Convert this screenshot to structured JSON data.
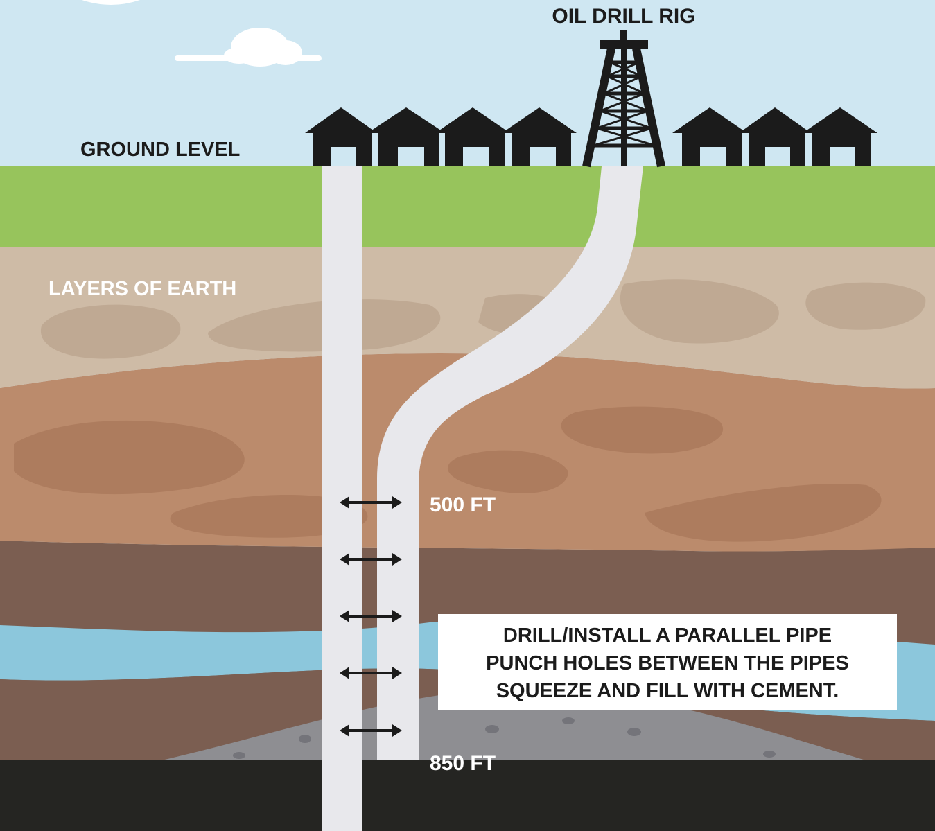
{
  "labels": {
    "rig": "OIL DRILL RIG",
    "ground": "GROUND LEVEL",
    "layers": "LAYERS OF EARTH",
    "depth_500": "500 FT",
    "depth_850": "850 FT"
  },
  "callout": {
    "lines": [
      "DRILL/INSTALL A PARALLEL PIPE",
      "PUNCH HOLES BETWEEN THE PIPES",
      "SQUEEZE AND FILL WITH CEMENT."
    ]
  },
  "colors": {
    "sky": "#cfe7f2",
    "grass": "#97c45c",
    "layer_tan": "#cebba6",
    "layer_clay": "#bb8b6c",
    "layer_brown": "#7b5e51",
    "water": "#8cc7dc",
    "cement": "#8e8e92",
    "bedrock": "#252522",
    "pipe": "#e8e8ec",
    "silhouette": "#1b1b1b"
  }
}
